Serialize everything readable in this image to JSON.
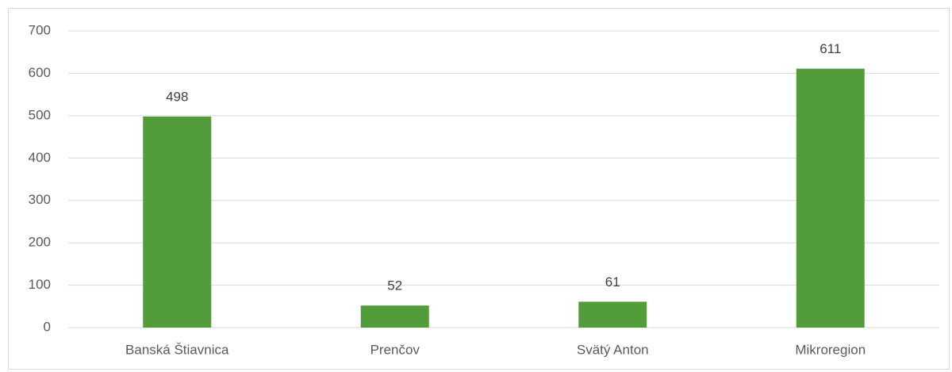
{
  "chart_data": {
    "type": "bar",
    "categories": [
      "Banská Štiavnica",
      "Prenčov",
      "Svätý Anton",
      "Mikroregion"
    ],
    "values": [
      498,
      52,
      61,
      611
    ],
    "color": "#539c3a",
    "ylim": [
      0,
      700
    ],
    "yticks": [
      0,
      100,
      200,
      300,
      400,
      500,
      600,
      700
    ],
    "grid": true
  }
}
